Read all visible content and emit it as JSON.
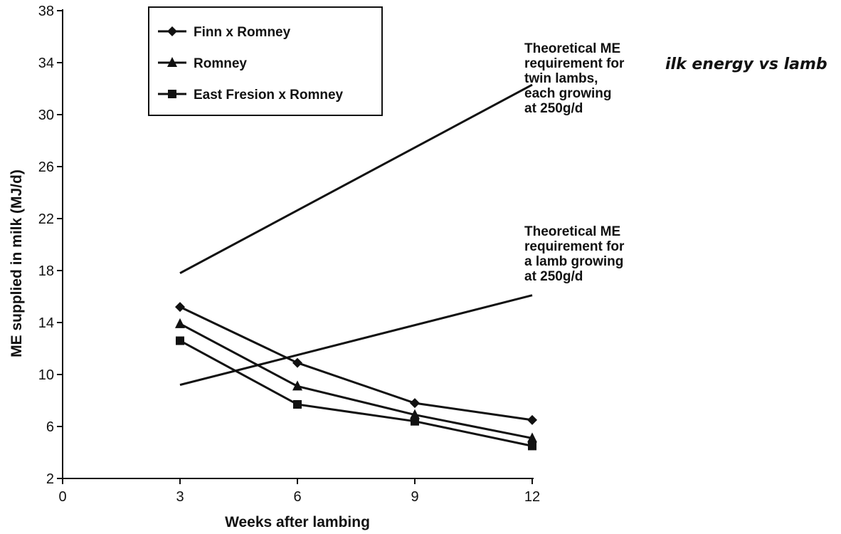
{
  "chart_data": {
    "type": "line",
    "partial_title": "ilk energy vs lamb",
    "xlabel": "Weeks after lambing",
    "ylabel": "ME supplied in milk (MJ/d)",
    "xlim": [
      0,
      12
    ],
    "ylim": [
      2,
      38
    ],
    "x_ticks": [
      "0",
      "3",
      "6",
      "9",
      "12"
    ],
    "y_ticks": [
      "2",
      "6",
      "10",
      "14",
      "18",
      "22",
      "26",
      "30",
      "34",
      "38"
    ],
    "grid": false,
    "legend_position": "top-left",
    "series": [
      {
        "name": "Finn x Romney",
        "marker": "diamond",
        "x": [
          3,
          6,
          9,
          12
        ],
        "y": [
          15.2,
          10.9,
          7.8,
          6.5
        ]
      },
      {
        "name": "Romney",
        "marker": "triangle",
        "x": [
          3,
          6,
          9,
          12
        ],
        "y": [
          13.9,
          9.1,
          6.9,
          5.1
        ]
      },
      {
        "name": "East Fresion x Romney",
        "marker": "square",
        "x": [
          3,
          6,
          9,
          12
        ],
        "y": [
          12.6,
          7.7,
          6.4,
          4.5
        ]
      }
    ],
    "requirement_lines": [
      {
        "name": "twin",
        "x": [
          3,
          12
        ],
        "y": [
          17.8,
          32.3
        ]
      },
      {
        "name": "single",
        "x": [
          3,
          12
        ],
        "y": [
          9.2,
          16.1
        ]
      }
    ],
    "annotations": [
      {
        "id": "twin",
        "lines": [
          "Theoretical ME",
          "requirement for",
          "twin lambs,",
          "each growing",
          "at 250g/d"
        ]
      },
      {
        "id": "single",
        "lines": [
          "Theoretical ME",
          "requirement for",
          "a lamb growing",
          "at 250g/d"
        ]
      }
    ]
  }
}
